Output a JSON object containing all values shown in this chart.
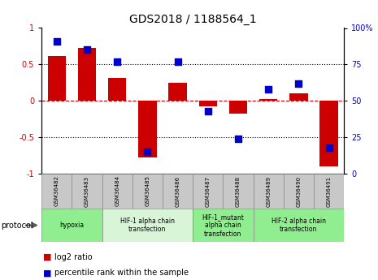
{
  "title": "GDS2018 / 1188564_1",
  "samples": [
    "GSM36482",
    "GSM36483",
    "GSM36484",
    "GSM36485",
    "GSM36486",
    "GSM36487",
    "GSM36488",
    "GSM36489",
    "GSM36490",
    "GSM36491"
  ],
  "log2_ratio": [
    0.62,
    0.73,
    0.31,
    -0.78,
    0.25,
    -0.08,
    -0.18,
    0.03,
    0.1,
    -0.9
  ],
  "percentile_rank": [
    91,
    85,
    77,
    15,
    77,
    43,
    24,
    58,
    62,
    18
  ],
  "groups": [
    {
      "label": "hypoxia",
      "start": 0,
      "end": 2,
      "color": "#90ee90"
    },
    {
      "label": "HIF-1 alpha chain\ntransfection",
      "start": 2,
      "end": 5,
      "color": "#d8f5d8"
    },
    {
      "label": "HIF-1_mutant\nalpha chain\ntransfection",
      "start": 5,
      "end": 7,
      "color": "#90ee90"
    },
    {
      "label": "HIF-2 alpha chain\ntransfection",
      "start": 7,
      "end": 10,
      "color": "#90ee90"
    }
  ],
  "bar_color": "#cc0000",
  "dot_color": "#0000cc",
  "sample_box_color": "#c8c8c8",
  "ylim_left": [
    -1,
    1
  ],
  "ylim_right": [
    0,
    100
  ],
  "yticks_left": [
    -1,
    -0.5,
    0,
    0.5,
    1
  ],
  "ytick_labels_left": [
    "-1",
    "-0.5",
    "0",
    "0.5",
    "1"
  ],
  "yticks_right": [
    0,
    25,
    50,
    75,
    100
  ],
  "ytick_labels_right": [
    "0",
    "25",
    "50",
    "75",
    "100%"
  ],
  "hline_color": "#cc0000",
  "dotline_color": "black",
  "bar_width": 0.6,
  "dot_size": 40,
  "protocol_label": "protocol",
  "legend_log2": "log2 ratio",
  "legend_pct": "percentile rank within the sample"
}
